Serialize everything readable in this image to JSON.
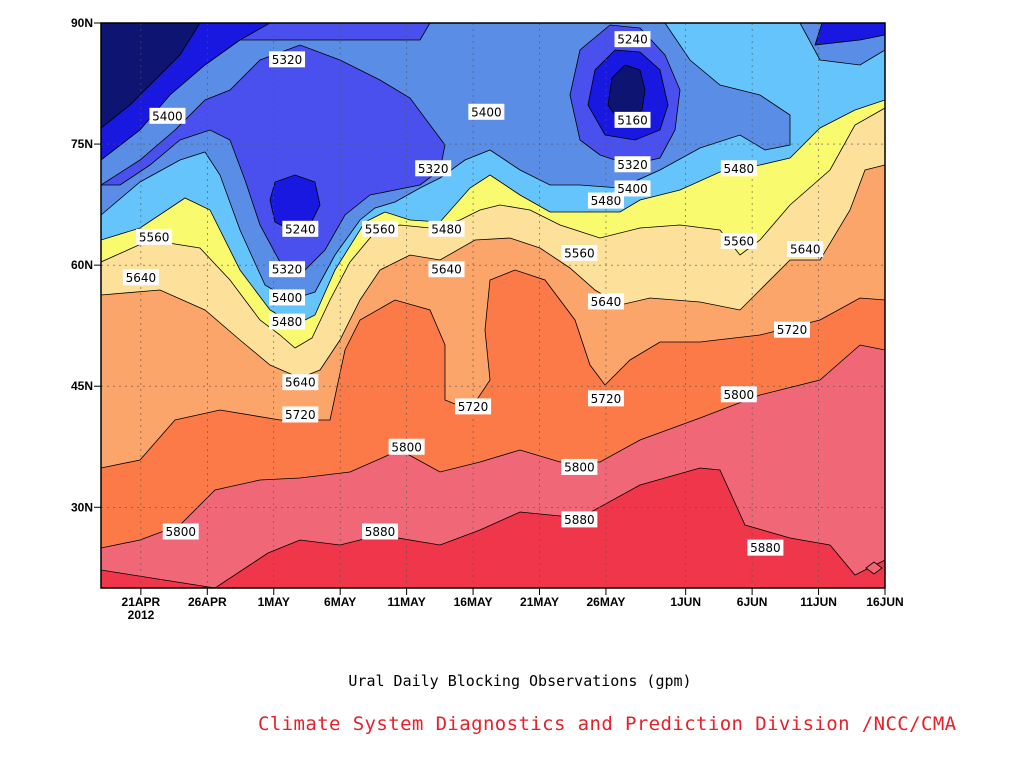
{
  "title": "Ural Daily Blocking Observations (gpm)",
  "credit": "Climate System Diagnostics and Prediction Division /NCC/CMA",
  "credit_color": "#e8202a",
  "chart_data": {
    "type": "heatmap",
    "subtype": "filled-contour",
    "x_tick_labels": [
      "21APR",
      "26APR",
      "1MAY",
      "6MAY",
      "11MAY",
      "16MAY",
      "21MAY",
      "26MAY",
      "1JUN",
      "6JUN",
      "11JUN",
      "16JUN"
    ],
    "x_year_label": "2012",
    "y_tick_labels": [
      "90N",
      "75N",
      "60N",
      "45N",
      "30N"
    ],
    "y_tick_values": [
      90,
      75,
      60,
      45,
      30
    ],
    "x_range": [
      "18APR2012",
      "16JUN2012"
    ],
    "ylim": [
      20,
      90
    ],
    "grid": true,
    "contour_levels": [
      5160,
      5240,
      5320,
      5400,
      5480,
      5560,
      5640,
      5720,
      5800,
      5880
    ],
    "level_colors": [
      "#0d1472",
      "#1818e0",
      "#4a50ee",
      "#5a8ee6",
      "#66c4fc",
      "#fafa6e",
      "#fde19a",
      "#fca56a",
      "#fc7a48",
      "#f06878",
      "#f0364a"
    ],
    "contour_labels": [
      {
        "value": "5320",
        "date": "2MAY",
        "lat": 85.5
      },
      {
        "value": "5400",
        "date": "23APR",
        "lat": 78.5
      },
      {
        "value": "5240",
        "date": "28MAY",
        "lat": 88
      },
      {
        "value": "5160",
        "date": "28MAY",
        "lat": 78
      },
      {
        "value": "5400",
        "date": "17MAY",
        "lat": 79
      },
      {
        "value": "5320",
        "date": "13MAY",
        "lat": 72
      },
      {
        "value": "5320",
        "date": "28MAY",
        "lat": 72.5
      },
      {
        "value": "5480",
        "date": "26MAY",
        "lat": 68
      },
      {
        "value": "5400",
        "date": "28MAY",
        "lat": 69.5
      },
      {
        "value": "5480",
        "date": "5JUN",
        "lat": 72
      },
      {
        "value": "5240",
        "date": "3MAY",
        "lat": 64.5
      },
      {
        "value": "5560",
        "date": "22APR",
        "lat": 63.5
      },
      {
        "value": "5560",
        "date": "9MAY",
        "lat": 64.5
      },
      {
        "value": "5480",
        "date": "14MAY",
        "lat": 64.5
      },
      {
        "value": "5560",
        "date": "24MAY",
        "lat": 61.5
      },
      {
        "value": "5560",
        "date": "5JUN",
        "lat": 63
      },
      {
        "value": "5640",
        "date": "10JUN",
        "lat": 62
      },
      {
        "value": "5640",
        "date": "21APR",
        "lat": 58.5
      },
      {
        "value": "5320",
        "date": "2MAY",
        "lat": 59.5
      },
      {
        "value": "5640",
        "date": "14MAY",
        "lat": 59.5
      },
      {
        "value": "5400",
        "date": "2MAY",
        "lat": 56
      },
      {
        "value": "5640",
        "date": "26MAY",
        "lat": 55.5
      },
      {
        "value": "5480",
        "date": "2MAY",
        "lat": 53
      },
      {
        "value": "5720",
        "date": "9JUN",
        "lat": 52
      },
      {
        "value": "5640",
        "date": "3MAY",
        "lat": 45.5
      },
      {
        "value": "5800",
        "date": "5JUN",
        "lat": 44
      },
      {
        "value": "5720",
        "date": "16MAY",
        "lat": 42.5
      },
      {
        "value": "5720",
        "date": "26MAY",
        "lat": 43.5
      },
      {
        "value": "5720",
        "date": "3MAY",
        "lat": 41.5
      },
      {
        "value": "5800",
        "date": "11MAY",
        "lat": 37.5
      },
      {
        "value": "5800",
        "date": "24MAY",
        "lat": 35
      },
      {
        "value": "5800",
        "date": "24APR",
        "lat": 27
      },
      {
        "value": "5880",
        "date": "9MAY",
        "lat": 27
      },
      {
        "value": "5880",
        "date": "24MAY",
        "lat": 28.5
      },
      {
        "value": "5880",
        "date": "7JUN",
        "lat": 25
      }
    ]
  }
}
